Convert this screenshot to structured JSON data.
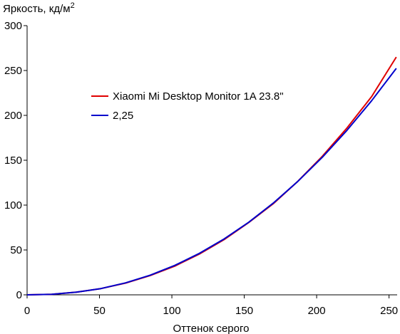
{
  "chart_data": {
    "type": "line",
    "title": "",
    "ylabel": "Яркость, кд/м",
    "ylabel_superscript": "2",
    "xlabel": "Оттенок серого",
    "xlim": [
      0,
      255
    ],
    "ylim": [
      0,
      300
    ],
    "xticks": [
      0,
      50,
      100,
      150,
      200,
      250
    ],
    "yticks": [
      0,
      50,
      100,
      150,
      200,
      250,
      300
    ],
    "grid": false,
    "legend_position": "center-left",
    "series": [
      {
        "name": "Xiaomi Mi Desktop Monitor 1A 23.8\"",
        "color": "#e00000",
        "x": [
          0,
          17,
          34,
          51,
          68,
          85,
          102,
          119,
          136,
          153,
          170,
          187,
          204,
          221,
          238,
          255
        ],
        "y": [
          0,
          0.6,
          2.9,
          7.0,
          13.1,
          21.5,
          32.0,
          45.5,
          61.5,
          80.5,
          101.5,
          126.5,
          154.5,
          186.0,
          221.0,
          265.0
        ]
      },
      {
        "name": "2,25",
        "color": "#0000cc",
        "x": [
          0,
          17,
          34,
          51,
          68,
          85,
          102,
          119,
          136,
          153,
          170,
          187,
          204,
          221,
          238,
          255
        ],
        "y": [
          0,
          0.6,
          2.9,
          7.0,
          13.3,
          21.9,
          32.8,
          46.2,
          62.2,
          80.8,
          102.2,
          126.4,
          153.4,
          183.4,
          216.4,
          252.4
        ]
      }
    ]
  }
}
